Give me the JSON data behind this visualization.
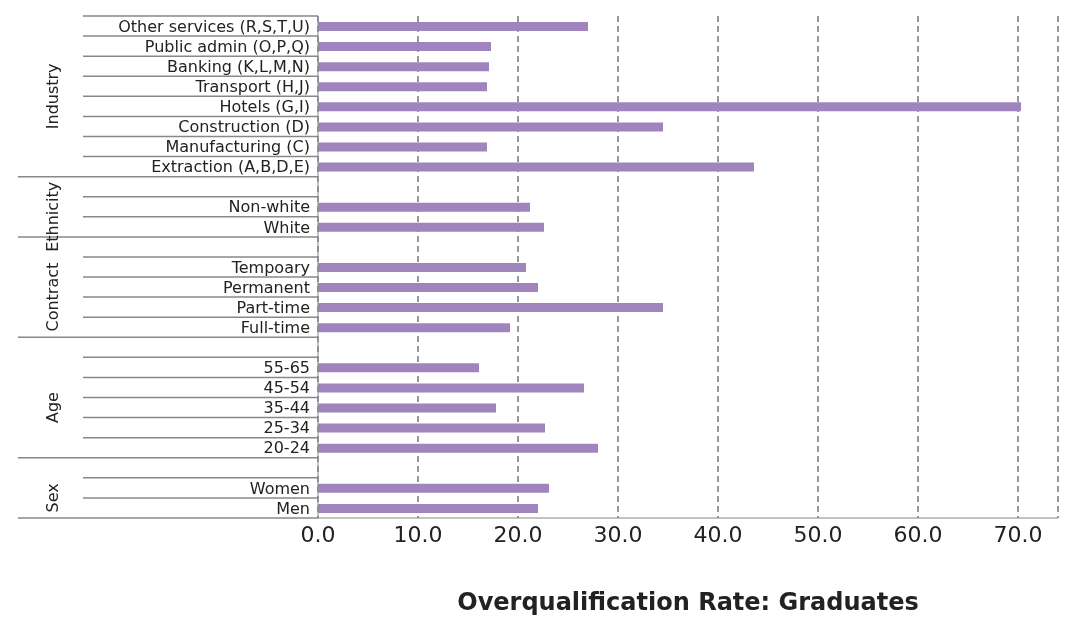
{
  "chart_data": {
    "type": "bar",
    "orientation": "horizontal",
    "xlabel": "Overqualification Rate: Graduates",
    "categories": [
      "Other services  (R,S,T,U)",
      "Public admin (O,P,Q)",
      "Banking (K,L,M,N)",
      "Transport (H,J)",
      "Hotels (G,I)",
      "Construction (D)",
      "Manufacturing (C)",
      "Extraction (A,B,D,E)",
      null,
      "Non-white",
      "White",
      null,
      "Tempoary",
      "Permanent",
      "Part-time",
      "Full-time",
      null,
      "55-65",
      "45-54",
      "35-44",
      "25-34",
      "20-24",
      null,
      "Women",
      "Men"
    ],
    "values": [
      27.0,
      17.3,
      17.1,
      16.9,
      70.3,
      34.5,
      16.9,
      43.6,
      null,
      21.2,
      22.6,
      null,
      20.8,
      22.0,
      34.5,
      19.2,
      null,
      16.1,
      26.6,
      17.8,
      22.7,
      28.0,
      null,
      23.1,
      22.0
    ],
    "color": "#9f84bd",
    "xlim": [
      0,
      74
    ],
    "xticks": [
      {
        "value": 0,
        "label": "0.0"
      },
      {
        "value": 10,
        "label": "10.0"
      },
      {
        "value": 20,
        "label": "20.0"
      },
      {
        "value": 30,
        "label": "30.0"
      },
      {
        "value": 40,
        "label": "40.0"
      },
      {
        "value": 50,
        "label": "50.0"
      },
      {
        "value": 60,
        "label": "60.0"
      },
      {
        "value": 70,
        "label": "70.0"
      }
    ],
    "grid": "x",
    "legend": false,
    "annotations": [
      "Industry",
      "Ethnicity",
      "Contract",
      "Age",
      "Sex"
    ]
  }
}
